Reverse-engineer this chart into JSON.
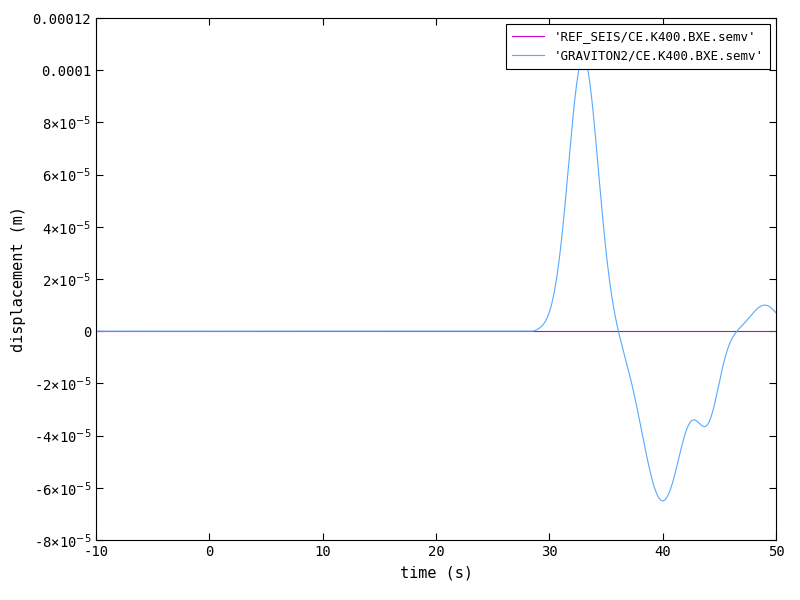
{
  "title": "",
  "xlabel": "time (s)",
  "ylabel": "displacement (m)",
  "xlim": [
    -10,
    50
  ],
  "ylim": [
    -8e-05,
    0.00012
  ],
  "yticks": [
    -8e-05,
    -6e-05,
    -4e-05,
    -2e-05,
    0,
    2e-05,
    4e-05,
    6e-05,
    8e-05,
    0.0001,
    0.00012
  ],
  "xticks": [
    -10,
    0,
    10,
    20,
    30,
    40,
    50
  ],
  "line_color_ref": "#cc00cc",
  "line_color_grav": "#55aaff",
  "legend_labels": [
    "'REF_SEIS/CE.K400.BXE.semv'",
    "'GRAVITON2/CE.K400.BXE.semv'"
  ],
  "bg_color": "#ffffff",
  "figsize": [
    8.0,
    6.0
  ],
  "dpi": 100
}
